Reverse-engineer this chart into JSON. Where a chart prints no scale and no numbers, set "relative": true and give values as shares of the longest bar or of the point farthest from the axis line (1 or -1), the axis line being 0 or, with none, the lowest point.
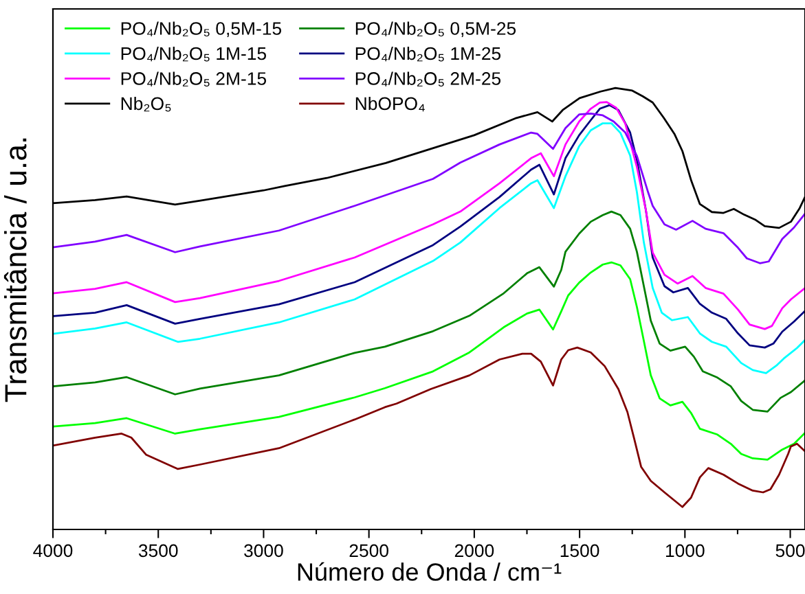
{
  "chart_data": {
    "type": "line",
    "relative": true,
    "xlabel": "Número de Onda / cm⁻¹",
    "ylabel": "Transmitância / u.a.",
    "xlim": [
      4000,
      430
    ],
    "xticks": [
      4000,
      {
        "value": 3750,
        "label": null
      },
      3500,
      {
        "value": 3250,
        "label": null
      },
      3000,
      {
        "value": 2750,
        "label": null
      },
      2500,
      {
        "value": 2250,
        "label": null
      },
      2000,
      {
        "value": 1750,
        "label": null
      },
      1500,
      {
        "value": 1250,
        "label": null
      },
      1000,
      {
        "value": 750,
        "label": null
      },
      500
    ],
    "legend": "top left",
    "series": [
      {
        "name": "PO₄/Nb₂O₅ 0,5M-15",
        "color": "#00ff00",
        "x": [
          4000,
          3800,
          3650,
          3420,
          3302,
          2927,
          2568,
          2424,
          2196,
          2023,
          1860,
          1750,
          1691,
          1626,
          1587,
          1554,
          1502,
          1447,
          1390,
          1349,
          1306,
          1260,
          1228,
          1195,
          1162,
          1120,
          1069,
          1012,
          971,
          929,
          846,
          782,
          733,
          678,
          608,
          538,
          482,
          432
        ],
        "values": [
          0.233,
          0.241,
          0.252,
          0.217,
          0.227,
          0.255,
          0.299,
          0.32,
          0.358,
          0.401,
          0.458,
          0.489,
          0.498,
          0.453,
          0.494,
          0.53,
          0.559,
          0.582,
          0.6,
          0.605,
          0.598,
          0.567,
          0.504,
          0.427,
          0.349,
          0.297,
          0.281,
          0.289,
          0.264,
          0.228,
          0.215,
          0.194,
          0.171,
          0.161,
          0.158,
          0.181,
          0.194,
          0.218
        ]
      },
      {
        "name": "PO₄/Nb₂O₅ 0,5M-25",
        "color": "#008000",
        "x": [
          4000,
          3800,
          3650,
          3420,
          3302,
          2927,
          2568,
          2424,
          2196,
          2023,
          1860,
          1750,
          1691,
          1622,
          1587,
          1567,
          1502,
          1447,
          1390,
          1349,
          1306,
          1260,
          1228,
          1195,
          1162,
          1120,
          1069,
          999,
          957,
          915,
          846,
          782,
          733,
          678,
          608,
          546,
          497,
          432
        ],
        "values": [
          0.324,
          0.333,
          0.345,
          0.306,
          0.319,
          0.349,
          0.4,
          0.414,
          0.449,
          0.484,
          0.535,
          0.58,
          0.594,
          0.55,
          0.588,
          0.629,
          0.67,
          0.697,
          0.712,
          0.72,
          0.712,
          0.681,
          0.629,
          0.551,
          0.473,
          0.421,
          0.405,
          0.414,
          0.391,
          0.358,
          0.344,
          0.324,
          0.291,
          0.271,
          0.267,
          0.298,
          0.311,
          0.337
        ]
      },
      {
        "name": "PO₄/Nb₂O₅ 1M-15",
        "color": "#00ffff",
        "x": [
          4000,
          3800,
          3650,
          3407,
          3302,
          2927,
          2568,
          2196,
          2066,
          1880,
          1730,
          1700,
          1622,
          1567,
          1502,
          1447,
          1390,
          1349,
          1306,
          1260,
          1228,
          1195,
          1153,
          1110,
          1061,
          986,
          929,
          872,
          804,
          733,
          678,
          615,
          566,
          531,
          468,
          432
        ],
        "values": [
          0.443,
          0.455,
          0.469,
          0.425,
          0.432,
          0.469,
          0.521,
          0.608,
          0.65,
          0.728,
          0.784,
          0.791,
          0.728,
          0.8,
          0.868,
          0.904,
          0.92,
          0.92,
          0.898,
          0.847,
          0.764,
          0.65,
          0.547,
          0.491,
          0.474,
          0.481,
          0.444,
          0.425,
          0.414,
          0.377,
          0.361,
          0.354,
          0.371,
          0.387,
          0.411,
          0.428
        ]
      },
      {
        "name": "PO₄/Nb₂O₅ 1M-25",
        "color": "#000080",
        "x": [
          4000,
          3800,
          3650,
          3420,
          3302,
          2927,
          2568,
          2196,
          2066,
          1880,
          1730,
          1691,
          1622,
          1567,
          1502,
          1447,
          1404,
          1358,
          1316,
          1260,
          1228,
          1185,
          1153,
          1097,
          1055,
          986,
          929,
          872,
          804,
          748,
          693,
          621,
          580,
          538,
          482,
          432
        ],
        "values": [
          0.483,
          0.491,
          0.508,
          0.466,
          0.477,
          0.51,
          0.56,
          0.644,
          0.686,
          0.753,
          0.815,
          0.826,
          0.759,
          0.841,
          0.893,
          0.927,
          0.953,
          0.961,
          0.95,
          0.899,
          0.837,
          0.722,
          0.616,
          0.551,
          0.537,
          0.547,
          0.511,
          0.491,
          0.477,
          0.444,
          0.417,
          0.412,
          0.421,
          0.448,
          0.471,
          0.494
        ]
      },
      {
        "name": "PO₄/Nb₂O₅ 2M-15",
        "color": "#ff00ff",
        "x": [
          4000,
          3800,
          3650,
          3420,
          3302,
          2927,
          2568,
          2196,
          2066,
          1880,
          1730,
          1684,
          1622,
          1567,
          1502,
          1447,
          1404,
          1371,
          1326,
          1283,
          1228,
          1185,
          1153,
          1097,
          1035,
          964,
          902,
          817,
          748,
          693,
          621,
          587,
          538,
          497,
          432
        ],
        "values": [
          0.535,
          0.545,
          0.56,
          0.515,
          0.524,
          0.563,
          0.616,
          0.691,
          0.72,
          0.784,
          0.841,
          0.852,
          0.8,
          0.872,
          0.924,
          0.953,
          0.967,
          0.968,
          0.955,
          0.919,
          0.821,
          0.722,
          0.627,
          0.577,
          0.557,
          0.574,
          0.547,
          0.534,
          0.498,
          0.464,
          0.454,
          0.461,
          0.501,
          0.521,
          0.546
        ]
      },
      {
        "name": "PO₄/Nb₂O₅ 2M-25",
        "color": "#8000ff",
        "x": [
          4000,
          3800,
          3650,
          3420,
          3302,
          2927,
          2568,
          2196,
          2066,
          1880,
          1730,
          1700,
          1626,
          1567,
          1502,
          1447,
          1390,
          1338,
          1283,
          1228,
          1175,
          1153,
          1097,
          1042,
          964,
          902,
          817,
          748,
          706,
          644,
          602,
          538,
          482,
          432
        ],
        "values": [
          0.639,
          0.652,
          0.667,
          0.628,
          0.641,
          0.677,
          0.733,
          0.794,
          0.831,
          0.872,
          0.899,
          0.896,
          0.862,
          0.909,
          0.94,
          0.942,
          0.938,
          0.924,
          0.899,
          0.846,
          0.764,
          0.733,
          0.691,
          0.679,
          0.699,
          0.681,
          0.671,
          0.638,
          0.614,
          0.603,
          0.607,
          0.658,
          0.684,
          0.714
        ]
      },
      {
        "name": "Nb₂O₅",
        "color": "#000000",
        "x": [
          4000,
          3800,
          3650,
          3420,
          3300,
          3000,
          2900,
          2700,
          2420,
          2000,
          1800,
          1700,
          1630,
          1580,
          1500,
          1400,
          1330,
          1250,
          1200,
          1153,
          1100,
          1050,
          1012,
          970,
          929,
          872,
          817,
          768,
          719,
          664,
          621,
          553,
          497,
          455,
          432
        ],
        "values": [
          0.739,
          0.746,
          0.754,
          0.736,
          0.745,
          0.768,
          0.778,
          0.796,
          0.83,
          0.893,
          0.932,
          0.945,
          0.924,
          0.95,
          0.977,
          0.992,
          1.0,
          0.994,
          0.981,
          0.967,
          0.932,
          0.896,
          0.857,
          0.79,
          0.737,
          0.719,
          0.717,
          0.726,
          0.713,
          0.701,
          0.687,
          0.683,
          0.697,
          0.728,
          0.751
        ]
      },
      {
        "name": "NbOPO₄",
        "color": "#800000",
        "x": [
          4000,
          3800,
          3674,
          3628,
          3557,
          3407,
          3302,
          2927,
          2568,
          2424,
          2369,
          2206,
          2023,
          1880,
          1772,
          1730,
          1684,
          1626,
          1587,
          1554,
          1511,
          1447,
          1381,
          1316,
          1273,
          1240,
          1208,
          1162,
          1097,
          1012,
          971,
          929,
          889,
          817,
          748,
          678,
          629,
          594,
          553,
          510,
          497,
          468,
          432
        ],
        "values": [
          0.19,
          0.208,
          0.217,
          0.208,
          0.169,
          0.137,
          0.147,
          0.184,
          0.249,
          0.277,
          0.285,
          0.318,
          0.349,
          0.385,
          0.398,
          0.398,
          0.38,
          0.326,
          0.385,
          0.406,
          0.412,
          0.401,
          0.37,
          0.318,
          0.266,
          0.204,
          0.142,
          0.11,
          0.084,
          0.051,
          0.072,
          0.118,
          0.139,
          0.124,
          0.104,
          0.088,
          0.084,
          0.091,
          0.124,
          0.171,
          0.188,
          0.194,
          0.178
        ]
      }
    ]
  }
}
